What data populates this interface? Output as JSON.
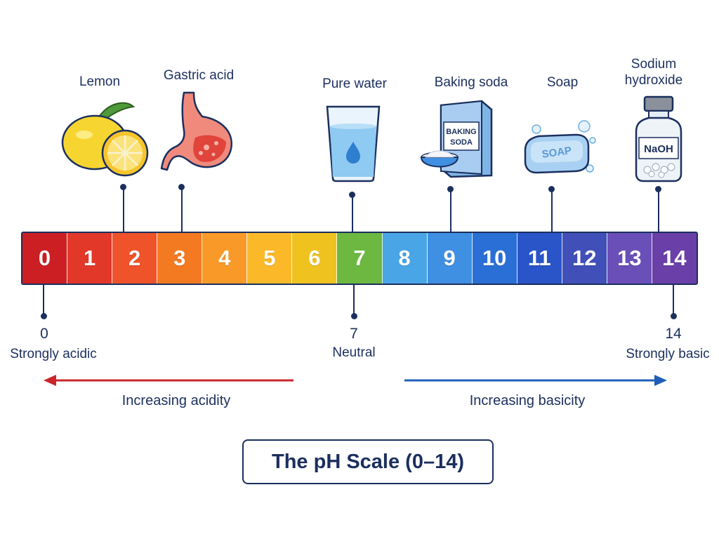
{
  "title": "The pH Scale (0–14)",
  "substances": [
    {
      "name": "Lemon",
      "icon": "lemon-icon"
    },
    {
      "name": "Gastric acid",
      "icon": "stomach-icon"
    },
    {
      "name": "Pure water",
      "icon": "water-glass-icon"
    },
    {
      "name": "Baking soda",
      "icon": "baking-soda-box-icon",
      "box_text": [
        "BAKING",
        "SODA"
      ]
    },
    {
      "name": "Soap",
      "icon": "soap-bar-icon",
      "bar_text": "SOAP"
    },
    {
      "name_lines": [
        "Sodium",
        "hydroxide"
      ],
      "icon": "bottle-icon",
      "bottle_text": "NaOH"
    }
  ],
  "scale": {
    "values": [
      "0",
      "1",
      "2",
      "3",
      "4",
      "5",
      "6",
      "7",
      "8",
      "9",
      "10",
      "11",
      "12",
      "13",
      "14"
    ],
    "colors": [
      "#cc1f24",
      "#e2382a",
      "#ee5329",
      "#f47a21",
      "#f99927",
      "#fbb92a",
      "#f0c220",
      "#6cb840",
      "#4aa5e6",
      "#3f8fe2",
      "#2a6fd6",
      "#2a55c8",
      "#4150b8",
      "#6a4fb8",
      "#6a3fa8"
    ]
  },
  "markers": [
    {
      "value": "0",
      "label": "Strongly acidic"
    },
    {
      "value": "7",
      "label": "Neutral"
    },
    {
      "value": "14",
      "label": "Strongly basic"
    }
  ],
  "arrows": {
    "acid": {
      "label": "Increasing acidity",
      "color": "#c9252b"
    },
    "base": {
      "label": "Increasing basicity",
      "color": "#1f5fb8"
    }
  }
}
